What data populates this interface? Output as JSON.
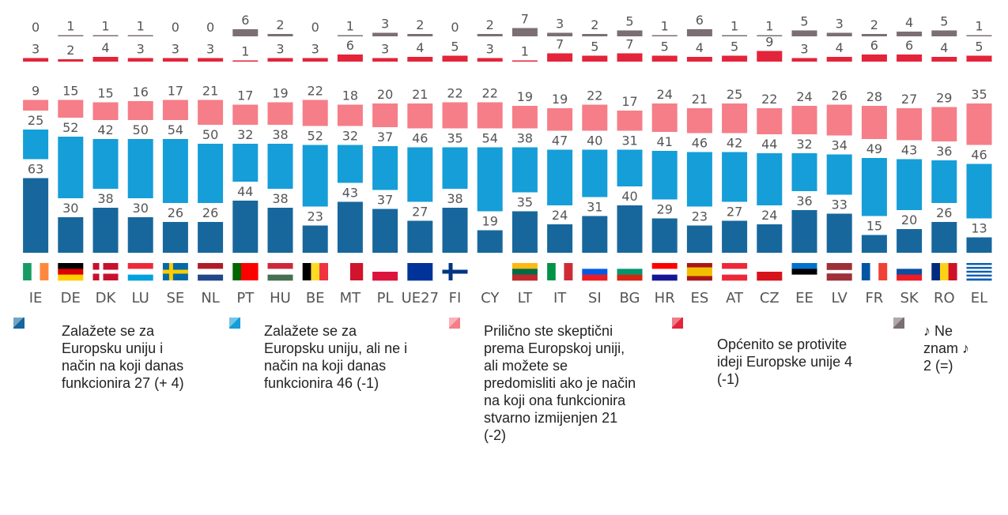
{
  "chart_data": {
    "type": "bar",
    "stacked": true,
    "categories": [
      "IE",
      "DE",
      "DK",
      "LU",
      "SE",
      "NL",
      "PT",
      "HU",
      "BE",
      "MT",
      "PL",
      "UE27",
      "FI",
      "CY",
      "LT",
      "IT",
      "SI",
      "BG",
      "HR",
      "ES",
      "AT",
      "CZ",
      "EE",
      "LV",
      "FR",
      "SK",
      "RO",
      "EL"
    ],
    "series": [
      {
        "name": "Zalažete se za Europsku uniju i način na koji danas funkcionira 27 (+ 4)",
        "color": "#17679d",
        "values": [
          63,
          30,
          38,
          30,
          26,
          26,
          44,
          38,
          23,
          43,
          37,
          27,
          38,
          19,
          35,
          24,
          31,
          40,
          29,
          23,
          27,
          24,
          36,
          33,
          15,
          20,
          26,
          13
        ]
      },
      {
        "name": "Zalažete se za Europsku uniju, ali ne i način na koji danas funkcionira 46 (-1)",
        "color": "#159ed8",
        "values": [
          25,
          52,
          42,
          50,
          54,
          50,
          32,
          38,
          52,
          32,
          37,
          46,
          35,
          54,
          38,
          47,
          40,
          31,
          41,
          46,
          42,
          44,
          32,
          34,
          49,
          43,
          36,
          46
        ]
      },
      {
        "name": "Prilično ste skeptični prema Europskoj uniji, ali možete se predomisliti ako je način na koji ona funkcionira stvarno izmijenjen 21 (-2)",
        "color": "#f57e88",
        "values": [
          9,
          15,
          15,
          16,
          17,
          21,
          17,
          19,
          22,
          18,
          20,
          21,
          22,
          22,
          19,
          19,
          22,
          17,
          24,
          21,
          25,
          22,
          24,
          26,
          28,
          27,
          29,
          35
        ]
      },
      {
        "name": "Općenito se protivite ideji Europske unije 4 (-1)",
        "color": "#e3243a",
        "values": [
          3,
          2,
          4,
          3,
          3,
          3,
          1,
          3,
          3,
          6,
          3,
          4,
          5,
          3,
          1,
          7,
          5,
          7,
          5,
          4,
          5,
          9,
          3,
          4,
          6,
          6,
          4,
          5
        ]
      },
      {
        "name": "♪ Ne znam ♪ 2 (=)",
        "color": "#7b6f74",
        "values": [
          0,
          1,
          1,
          1,
          0,
          0,
          6,
          2,
          0,
          1,
          3,
          2,
          0,
          2,
          7,
          3,
          2,
          5,
          1,
          6,
          1,
          1,
          5,
          3,
          2,
          4,
          5,
          1
        ]
      }
    ]
  }
}
